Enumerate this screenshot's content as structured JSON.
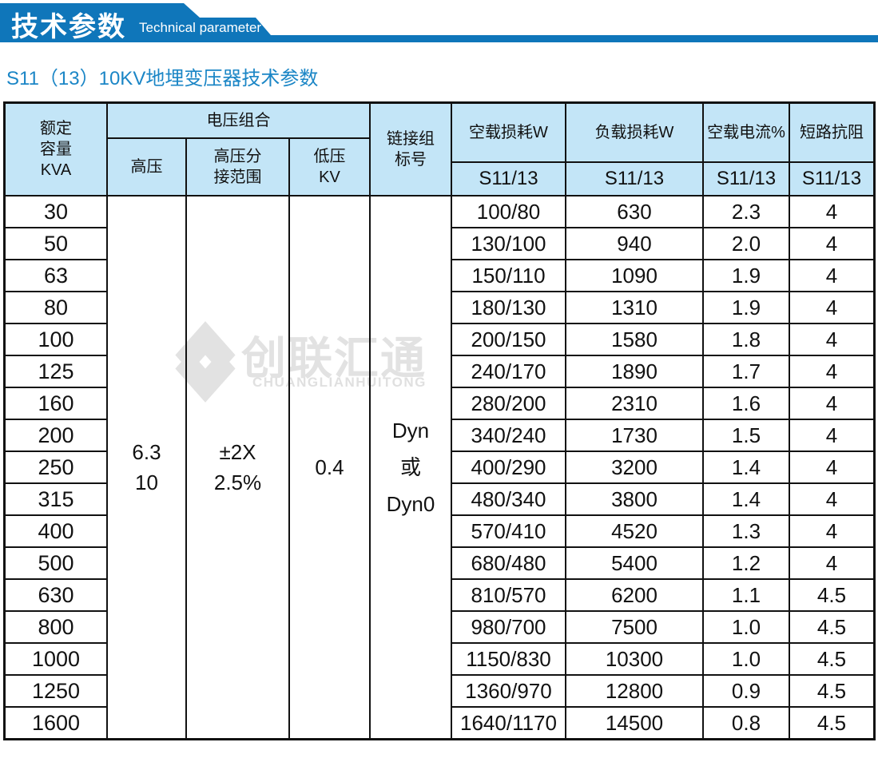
{
  "banner": {
    "title": "技术参数",
    "subtitle_en": "Technical parameter"
  },
  "page_title": "S11（13）10KV地埋变压器技术参数",
  "watermark": {
    "name_zh": "创联汇通",
    "name_en": "CHUANGLIANHUITONG"
  },
  "colors": {
    "banner_blue": "#0f76ba",
    "title_blue": "#1b86c6",
    "header_bg": "#c3e5f7",
    "grid_black": "#111111",
    "watermark_gray": "#e2e2e2"
  },
  "table": {
    "headers": {
      "capacity_lines": [
        "额定",
        "容量",
        "KVA"
      ],
      "voltage_group": "电压组合",
      "hv": "高压",
      "hv_tap_lines": [
        "高压分",
        "接范围"
      ],
      "lv_lines": [
        "低压",
        "KV"
      ],
      "connection_lines": [
        "链接组",
        "标号"
      ],
      "no_load_loss": "空载损耗W",
      "load_loss": "负载损耗W",
      "no_load_current": "空载电流%",
      "impedance": "短路抗阻",
      "model": "S11/13"
    },
    "merged": {
      "hv_lines": [
        "6.3",
        "10"
      ],
      "tap_lines": [
        "±2X",
        "2.5%"
      ],
      "lv": "0.4",
      "connection_lines": [
        "Dyn",
        "或",
        "Dyn0"
      ]
    },
    "rows": [
      {
        "kva": "30",
        "no_load_loss": "100/80",
        "load_loss": "630",
        "no_load_current": "2.3",
        "impedance": "4"
      },
      {
        "kva": "50",
        "no_load_loss": "130/100",
        "load_loss": "940",
        "no_load_current": "2.0",
        "impedance": "4"
      },
      {
        "kva": "63",
        "no_load_loss": "150/110",
        "load_loss": "1090",
        "no_load_current": "1.9",
        "impedance": "4"
      },
      {
        "kva": "80",
        "no_load_loss": "180/130",
        "load_loss": "1310",
        "no_load_current": "1.9",
        "impedance": "4"
      },
      {
        "kva": "100",
        "no_load_loss": "200/150",
        "load_loss": "1580",
        "no_load_current": "1.8",
        "impedance": "4"
      },
      {
        "kva": "125",
        "no_load_loss": "240/170",
        "load_loss": "1890",
        "no_load_current": "1.7",
        "impedance": "4"
      },
      {
        "kva": "160",
        "no_load_loss": "280/200",
        "load_loss": "2310",
        "no_load_current": "1.6",
        "impedance": "4"
      },
      {
        "kva": "200",
        "no_load_loss": "340/240",
        "load_loss": "1730",
        "no_load_current": "1.5",
        "impedance": "4"
      },
      {
        "kva": "250",
        "no_load_loss": "400/290",
        "load_loss": "3200",
        "no_load_current": "1.4",
        "impedance": "4"
      },
      {
        "kva": "315",
        "no_load_loss": "480/340",
        "load_loss": "3800",
        "no_load_current": "1.4",
        "impedance": "4"
      },
      {
        "kva": "400",
        "no_load_loss": "570/410",
        "load_loss": "4520",
        "no_load_current": "1.3",
        "impedance": "4"
      },
      {
        "kva": "500",
        "no_load_loss": "680/480",
        "load_loss": "5400",
        "no_load_current": "1.2",
        "impedance": "4"
      },
      {
        "kva": "630",
        "no_load_loss": "810/570",
        "load_loss": "6200",
        "no_load_current": "1.1",
        "impedance": "4.5"
      },
      {
        "kva": "800",
        "no_load_loss": "980/700",
        "load_loss": "7500",
        "no_load_current": "1.0",
        "impedance": "4.5"
      },
      {
        "kva": "1000",
        "no_load_loss": "1150/830",
        "load_loss": "10300",
        "no_load_current": "1.0",
        "impedance": "4.5"
      },
      {
        "kva": "1250",
        "no_load_loss": "1360/970",
        "load_loss": "12800",
        "no_load_current": "0.9",
        "impedance": "4.5"
      },
      {
        "kva": "1600",
        "no_load_loss": "1640/1170",
        "load_loss": "14500",
        "no_load_current": "0.8",
        "impedance": "4.5"
      }
    ]
  }
}
